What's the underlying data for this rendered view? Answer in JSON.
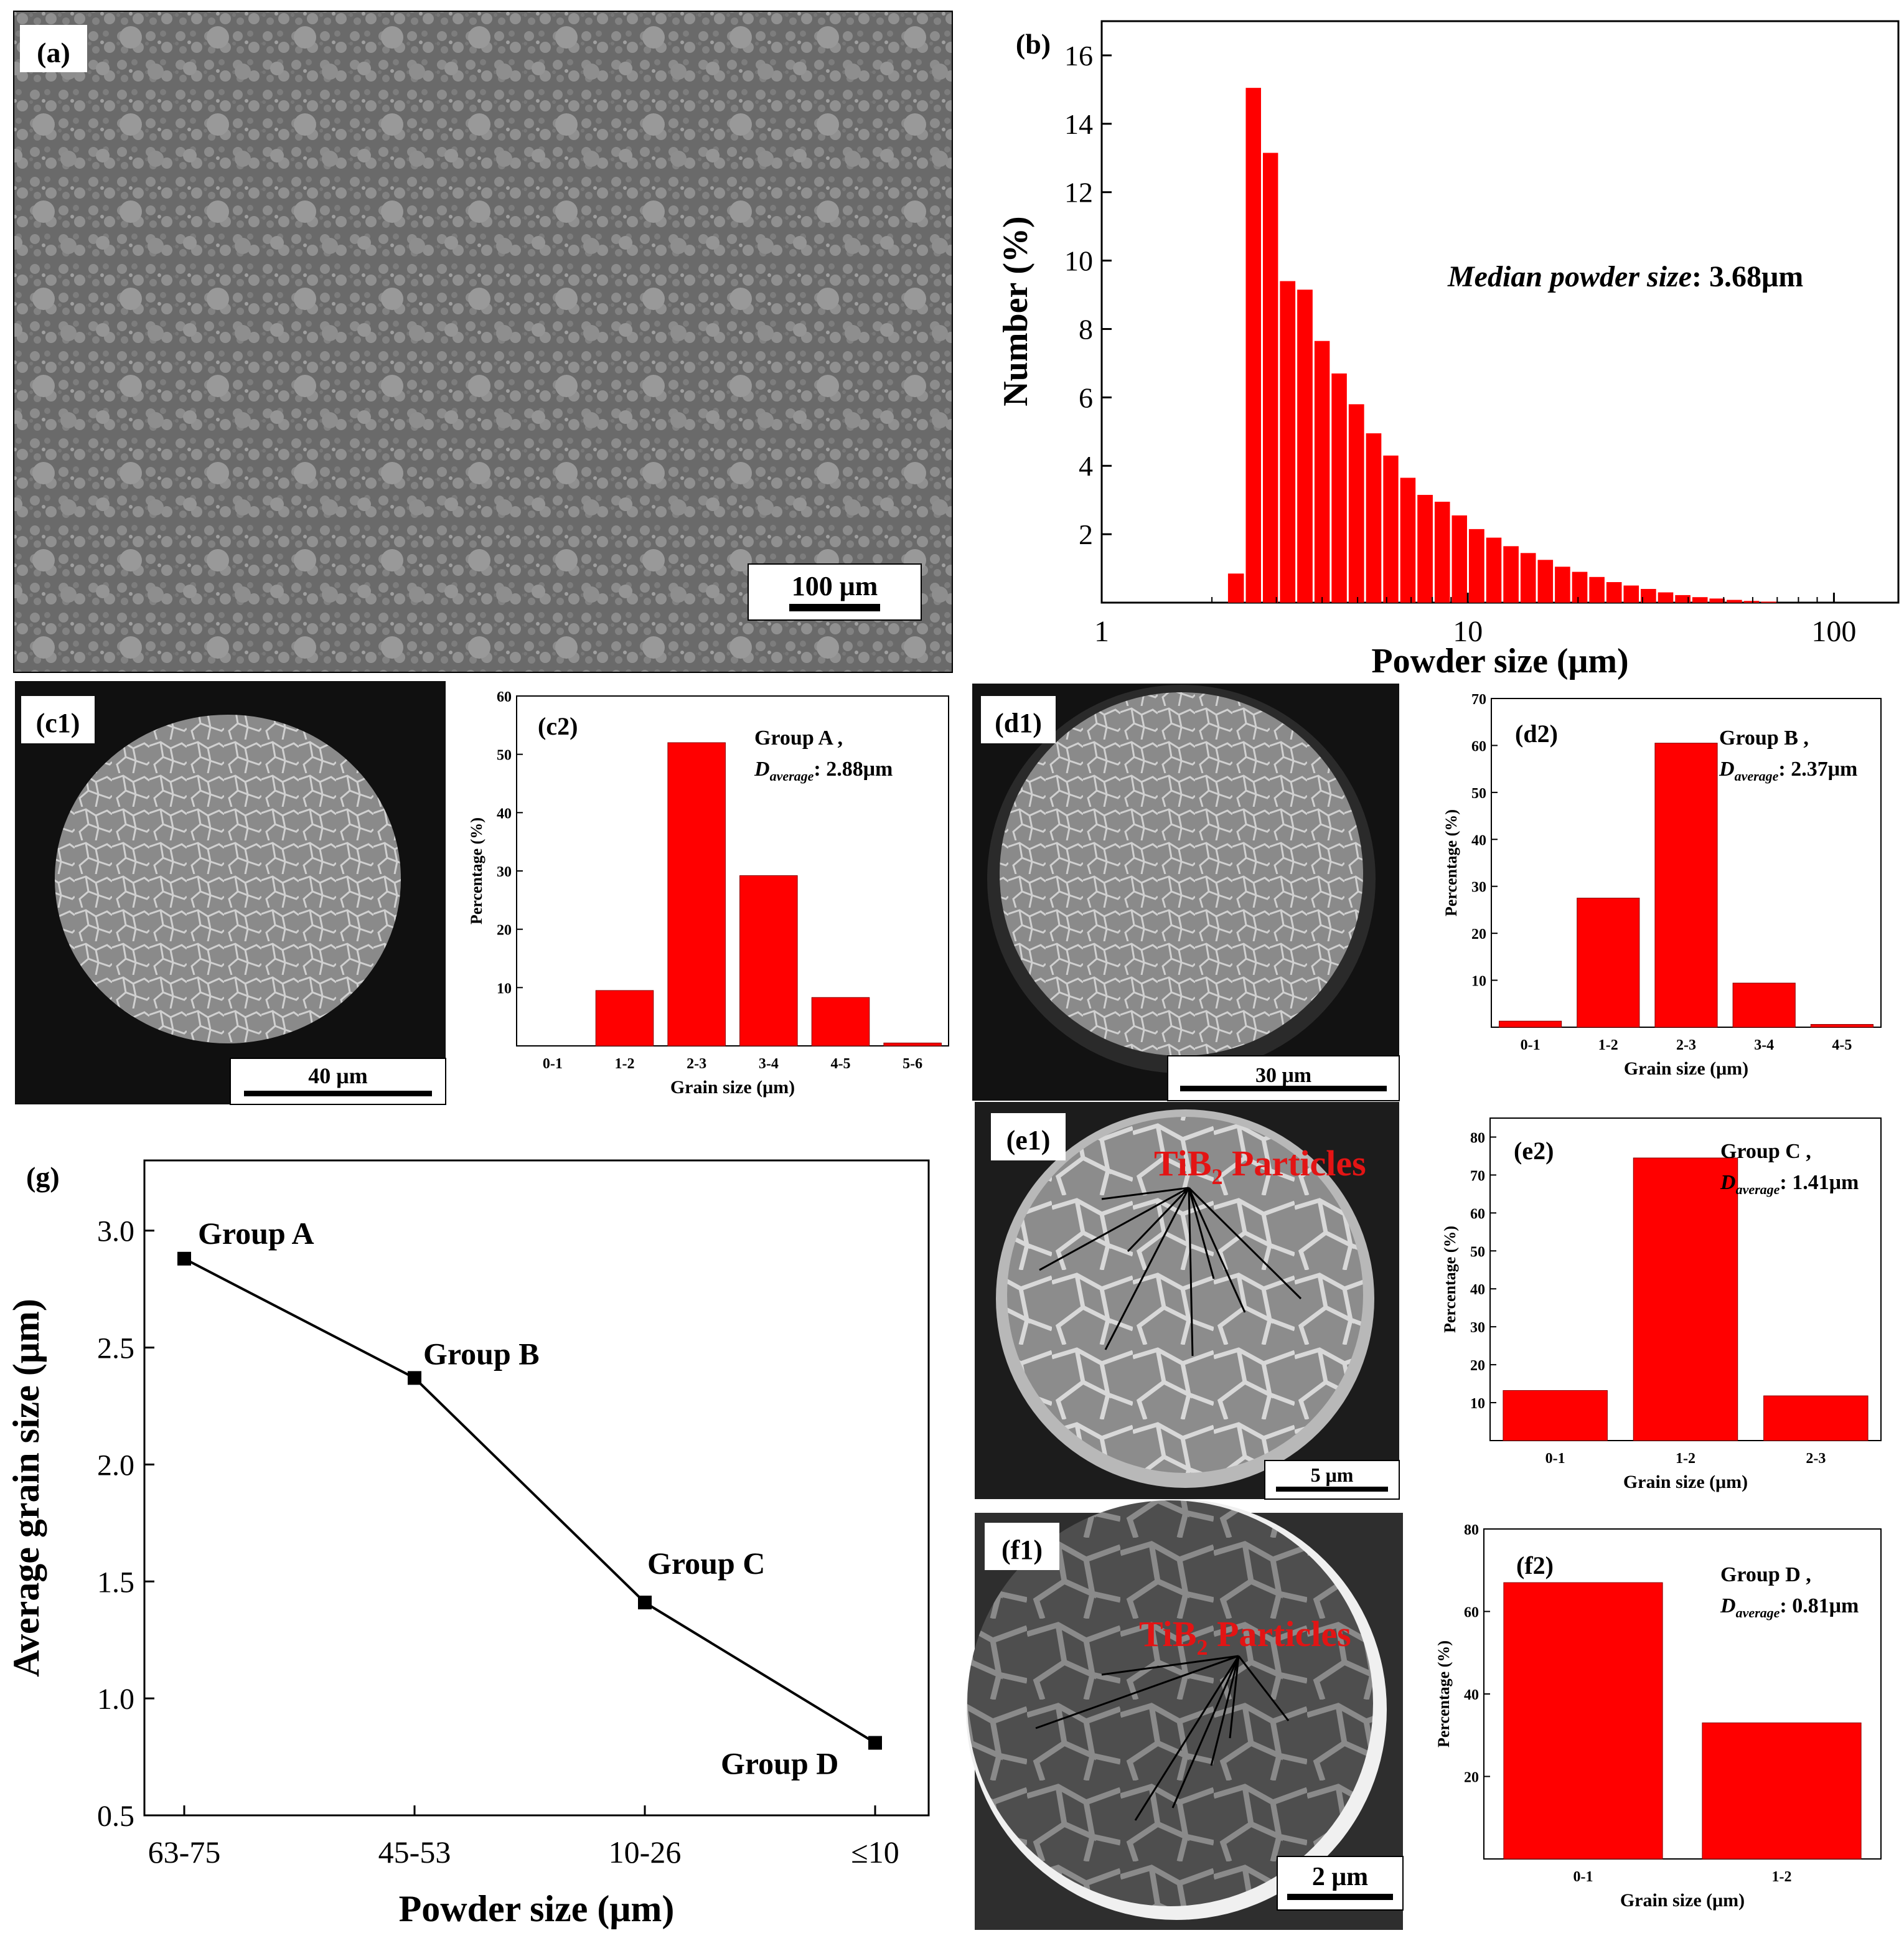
{
  "panels": {
    "a": {
      "label": "(a)",
      "scale_bar": "100 μm"
    },
    "c1": {
      "label": "(c1)",
      "scale_bar": "40 μm"
    },
    "d1": {
      "label": "(d1)",
      "scale_bar": "30 μm"
    },
    "e1": {
      "label": "(e1)",
      "scale_bar": "5 μm",
      "annotation": "TiB",
      "annotation_sub": "2",
      "annotation_rest": " Particles"
    },
    "f1": {
      "label": "(f1)",
      "scale_bar": "2 μm",
      "annotation": "TiB",
      "annotation_sub": "2",
      "annotation_rest": " Particles"
    }
  },
  "colors": {
    "bar": "#ff0000",
    "annotation": "#e31414",
    "axis": "#000000"
  },
  "chart_data": [
    {
      "id": "b",
      "panel_label": "(b)",
      "type": "bar",
      "xscale": "log",
      "xlim": [
        1,
        150
      ],
      "ylim": [
        0,
        17
      ],
      "xticks": [
        1,
        10,
        100
      ],
      "xtick_labels": [
        "1",
        "10",
        "100"
      ],
      "yticks": [
        2,
        4,
        6,
        8,
        10,
        12,
        14,
        16
      ],
      "ytick_labels": [
        "2",
        "4",
        "6",
        "8",
        "10",
        "12",
        "14",
        "16"
      ],
      "xlabel": "Powder size (μm)",
      "ylabel": "Number (%)",
      "annotation_italic": "Median powder size",
      "annotation_rest": ": 3.68μm",
      "bin_edges": [
        2.2,
        2.46,
        2.74,
        3.05,
        3.4,
        3.79,
        4.22,
        4.7,
        5.24,
        5.84,
        6.5,
        7.24,
        8.07,
        8.99,
        10.01,
        11.16,
        12.43,
        13.85,
        15.43,
        17.19,
        19.15,
        21.34,
        23.77,
        26.48,
        29.5,
        32.87,
        36.62,
        40.8,
        45.45,
        50.64,
        56.42,
        62.86,
        70.03
      ],
      "values": [
        0.85,
        15.05,
        13.15,
        9.4,
        9.15,
        7.65,
        6.7,
        5.8,
        4.95,
        4.3,
        3.65,
        3.15,
        2.95,
        2.55,
        2.15,
        1.9,
        1.65,
        1.45,
        1.25,
        1.05,
        0.9,
        0.75,
        0.6,
        0.5,
        0.4,
        0.3,
        0.22,
        0.16,
        0.12,
        0.08,
        0.05,
        0.03
      ]
    },
    {
      "id": "c2",
      "panel_label": "(c2)",
      "type": "bar",
      "categories": [
        "0-1",
        "1-2",
        "2-3",
        "3-4",
        "4-5",
        "5-6"
      ],
      "values": [
        0,
        9.5,
        52,
        29.2,
        8.3,
        0.5
      ],
      "ylim": [
        0,
        60
      ],
      "yticks": [
        10,
        20,
        30,
        40,
        50,
        60
      ],
      "ytick_labels": [
        "10",
        "20",
        "30",
        "40",
        "50",
        "60"
      ],
      "xlabel": "Grain size (μm)",
      "ylabel": "Percentage (%)",
      "group": "Group A ,",
      "d_symbol": "D",
      "d_sub": "average",
      "d_value": ": 2.88μm"
    },
    {
      "id": "d2",
      "panel_label": "(d2)",
      "type": "bar",
      "categories": [
        "0-1",
        "1-2",
        "2-3",
        "3-4",
        "4-5"
      ],
      "values": [
        1.3,
        27.5,
        60.5,
        9.4,
        0.6
      ],
      "ylim": [
        0,
        70
      ],
      "yticks": [
        10,
        20,
        30,
        40,
        50,
        60,
        70
      ],
      "ytick_labels": [
        "10",
        "20",
        "30",
        "40",
        "50",
        "60",
        "70"
      ],
      "xlabel": "Grain size (μm)",
      "ylabel": "Percentage (%)",
      "group": "Group B ,",
      "d_symbol": "D",
      "d_sub": "average",
      "d_value": ": 2.37μm"
    },
    {
      "id": "e2",
      "panel_label": "(e2)",
      "type": "bar",
      "categories": [
        "0-1",
        "1-2",
        "2-3"
      ],
      "values": [
        13.2,
        74.5,
        11.8
      ],
      "ylim": [
        0,
        85
      ],
      "yticks": [
        10,
        20,
        30,
        40,
        50,
        60,
        70,
        80
      ],
      "ytick_labels": [
        "10",
        "20",
        "30",
        "40",
        "50",
        "60",
        "70",
        "80"
      ],
      "xlabel": "Grain size (μm)",
      "ylabel": "Percentage (%)",
      "group": "Group C ,",
      "d_symbol": "D",
      "d_sub": "average",
      "d_value": ": 1.41μm"
    },
    {
      "id": "f2",
      "panel_label": "(f2)",
      "type": "bar",
      "categories": [
        "0-1",
        "1-2"
      ],
      "values": [
        67,
        33
      ],
      "ylim": [
        0,
        80
      ],
      "yticks": [
        20,
        40,
        60,
        80
      ],
      "ytick_labels": [
        "20",
        "40",
        "60",
        "80"
      ],
      "xlabel": "Grain size (μm)",
      "ylabel": "Percentage (%)",
      "group": "Group D ,",
      "d_symbol": "D",
      "d_sub": "average",
      "d_value": ": 0.81μm"
    },
    {
      "id": "g",
      "panel_label": "(g)",
      "type": "line",
      "categories": [
        "63-75",
        "45-53",
        "10-26",
        "≤10"
      ],
      "values": [
        2.88,
        2.37,
        1.41,
        0.81
      ],
      "point_labels": [
        "Group A",
        "Group B",
        "Group C",
        "Group D"
      ],
      "ylim": [
        0.5,
        3.3
      ],
      "yticks": [
        0.5,
        1.0,
        1.5,
        2.0,
        2.5,
        3.0
      ],
      "ytick_labels": [
        "0.5",
        "1.0",
        "1.5",
        "2.0",
        "2.5",
        "3.0"
      ],
      "xlabel": "Powder size (μm)",
      "ylabel": "Average grain size (μm)"
    }
  ]
}
